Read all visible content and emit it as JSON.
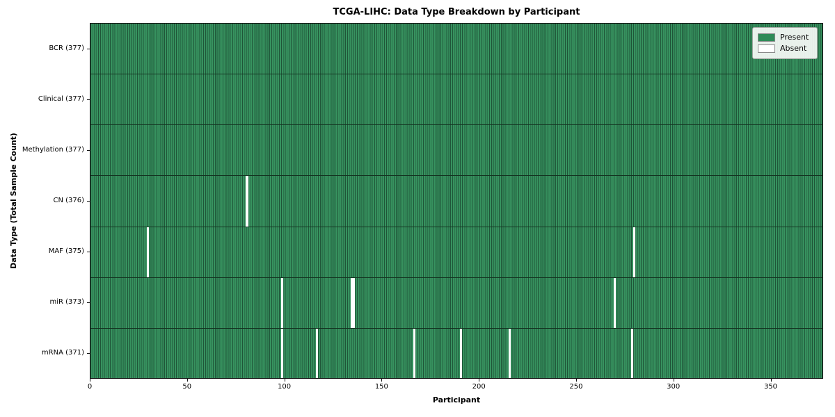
{
  "chart_data": {
    "type": "heatmap",
    "title": "TCGA-LIHC: Data Type Breakdown by Participant",
    "xlabel": "Participant",
    "ylabel": "Data Type (Total Sample Count)",
    "n_participants": 377,
    "x_ticks": [
      0,
      50,
      100,
      150,
      200,
      250,
      300,
      350
    ],
    "xlim": [
      0,
      377
    ],
    "grid": false,
    "legend_position": "upper right",
    "legend": [
      {
        "label": "Present",
        "color": "#2e8b57"
      },
      {
        "label": "Absent",
        "color": "#ffffff"
      }
    ],
    "rows": [
      {
        "label": "BCR (377)",
        "data_type": "BCR",
        "total": 377,
        "absent_participants": []
      },
      {
        "label": "Clinical (377)",
        "data_type": "Clinical",
        "total": 377,
        "absent_participants": []
      },
      {
        "label": "Methylation (377)",
        "data_type": "Methylation",
        "total": 377,
        "absent_participants": []
      },
      {
        "label": "CN (376)",
        "data_type": "CN",
        "total": 376,
        "absent_participants": [
          80
        ]
      },
      {
        "label": "MAF (375)",
        "data_type": "MAF",
        "total": 375,
        "absent_participants": [
          29,
          279
        ]
      },
      {
        "label": "miR (373)",
        "data_type": "miR",
        "total": 373,
        "absent_participants": [
          98,
          134,
          135,
          269
        ]
      },
      {
        "label": "mRNA (371)",
        "data_type": "mRNA",
        "total": 371,
        "absent_participants": [
          98,
          116,
          166,
          190,
          215,
          278
        ]
      }
    ],
    "colors": {
      "present": "#2e8b57",
      "present_cell_edge": "#1f5538",
      "absent": "#ffffff",
      "row_divider": "#143321",
      "axes_edge": "#141414",
      "legend_background": "#f3f7f3"
    }
  }
}
